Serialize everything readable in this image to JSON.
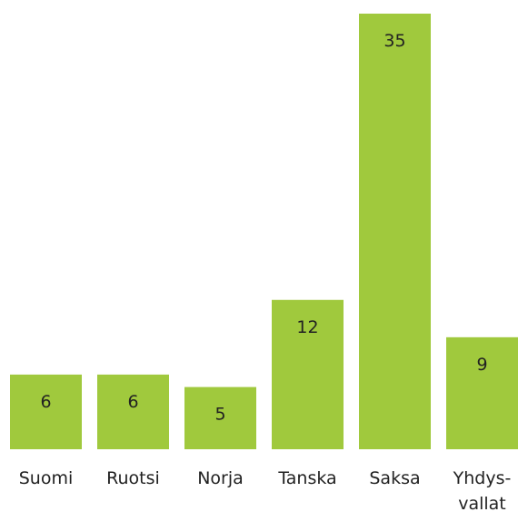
{
  "chart_data": {
    "type": "bar",
    "categories": [
      "Suomi",
      "Ruotsi",
      "Norja",
      "Tanska",
      "Saksa",
      "Yhdys-vallat"
    ],
    "values": [
      6,
      6,
      5,
      12,
      35,
      9
    ],
    "color": "#a0c93d"
  }
}
